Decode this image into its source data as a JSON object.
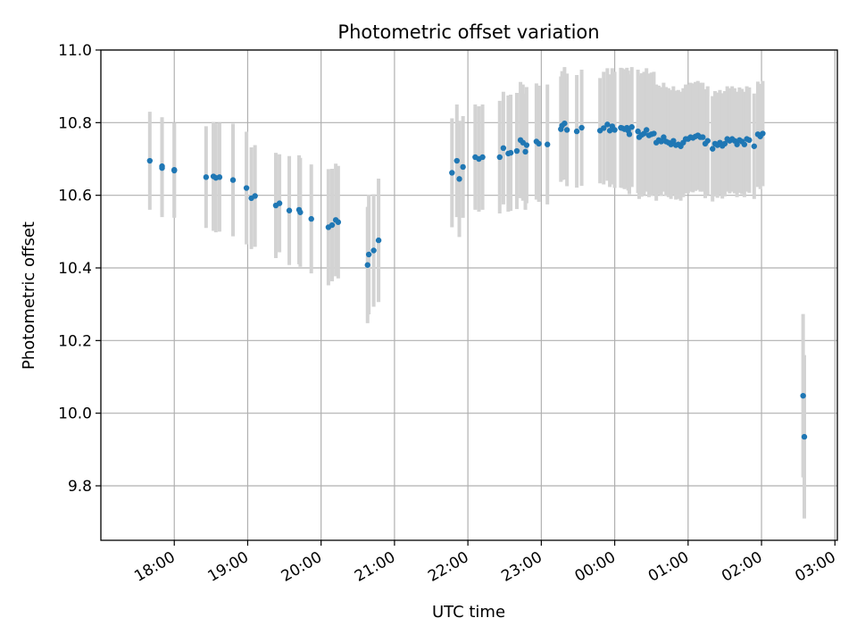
{
  "chart_data": {
    "type": "scatter",
    "title": "Photometric offset variation",
    "xlabel": "UTC time",
    "ylabel": "Photometric offset",
    "x_ticks": [
      "18:00",
      "19:00",
      "20:00",
      "21:00",
      "22:00",
      "23:00",
      "00:00",
      "01:00",
      "02:00",
      "03:00"
    ],
    "y_ticks": [
      "9.8",
      "10.0",
      "10.2",
      "10.4",
      "10.6",
      "10.8",
      "11.0"
    ],
    "ylim": [
      9.65,
      11.0
    ],
    "xlim": [
      "17:00",
      "03:02"
    ],
    "grid": true,
    "colors": {
      "points": "#1f77b4",
      "errorbars": "#d3d3d3",
      "grid": "#b0b0b0"
    },
    "points": [
      {
        "t": "17:40",
        "y": 10.695,
        "e": 0.135
      },
      {
        "t": "17:50",
        "y": 10.68,
        "e": 0.135
      },
      {
        "t": "17:50",
        "y": 10.675,
        "e": 0.135
      },
      {
        "t": "18:00",
        "y": 10.67,
        "e": 0.13
      },
      {
        "t": "18:00",
        "y": 10.668,
        "e": 0.13
      },
      {
        "t": "18:26",
        "y": 10.65,
        "e": 0.14
      },
      {
        "t": "18:32",
        "y": 10.652,
        "e": 0.15
      },
      {
        "t": "18:34",
        "y": 10.648,
        "e": 0.15
      },
      {
        "t": "18:37",
        "y": 10.65,
        "e": 0.15
      },
      {
        "t": "18:48",
        "y": 10.642,
        "e": 0.155
      },
      {
        "t": "18:59",
        "y": 10.62,
        "e": 0.155
      },
      {
        "t": "19:03",
        "y": 10.592,
        "e": 0.14
      },
      {
        "t": "19:06",
        "y": 10.598,
        "e": 0.14
      },
      {
        "t": "19:23",
        "y": 10.572,
        "e": 0.145
      },
      {
        "t": "19:26",
        "y": 10.578,
        "e": 0.135
      },
      {
        "t": "19:34",
        "y": 10.558,
        "e": 0.15
      },
      {
        "t": "19:42",
        "y": 10.56,
        "e": 0.15
      },
      {
        "t": "19:43",
        "y": 10.553,
        "e": 0.15
      },
      {
        "t": "19:52",
        "y": 10.535,
        "e": 0.15
      },
      {
        "t": "20:06",
        "y": 10.512,
        "e": 0.16
      },
      {
        "t": "20:09",
        "y": 10.518,
        "e": 0.155
      },
      {
        "t": "20:12",
        "y": 10.532,
        "e": 0.155
      },
      {
        "t": "20:14",
        "y": 10.526,
        "e": 0.155
      },
      {
        "t": "20:38",
        "y": 10.408,
        "e": 0.16
      },
      {
        "t": "20:39",
        "y": 10.437,
        "e": 0.165
      },
      {
        "t": "20:43",
        "y": 10.448,
        "e": 0.155
      },
      {
        "t": "20:47",
        "y": 10.476,
        "e": 0.17
      },
      {
        "t": "21:47",
        "y": 10.662,
        "e": 0.15
      },
      {
        "t": "21:51",
        "y": 10.695,
        "e": 0.155
      },
      {
        "t": "21:53",
        "y": 10.645,
        "e": 0.16
      },
      {
        "t": "21:56",
        "y": 10.678,
        "e": 0.14
      },
      {
        "t": "22:06",
        "y": 10.705,
        "e": 0.145
      },
      {
        "t": "22:09",
        "y": 10.7,
        "e": 0.145
      },
      {
        "t": "22:12",
        "y": 10.705,
        "e": 0.145
      },
      {
        "t": "22:26",
        "y": 10.705,
        "e": 0.155
      },
      {
        "t": "22:29",
        "y": 10.73,
        "e": 0.155
      },
      {
        "t": "22:33",
        "y": 10.715,
        "e": 0.16
      },
      {
        "t": "22:35",
        "y": 10.717,
        "e": 0.16
      },
      {
        "t": "22:40",
        "y": 10.722,
        "e": 0.16
      },
      {
        "t": "22:43",
        "y": 10.752,
        "e": 0.16
      },
      {
        "t": "22:45",
        "y": 10.745,
        "e": 0.16
      },
      {
        "t": "22:47",
        "y": 10.72,
        "e": 0.16
      },
      {
        "t": "22:48",
        "y": 10.738,
        "e": 0.16
      },
      {
        "t": "22:56",
        "y": 10.748,
        "e": 0.16
      },
      {
        "t": "22:58",
        "y": 10.742,
        "e": 0.16
      },
      {
        "t": "23:05",
        "y": 10.74,
        "e": 0.165
      },
      {
        "t": "23:16",
        "y": 10.782,
        "e": 0.145
      },
      {
        "t": "23:17",
        "y": 10.792,
        "e": 0.15
      },
      {
        "t": "23:19",
        "y": 10.798,
        "e": 0.155
      },
      {
        "t": "23:21",
        "y": 10.78,
        "e": 0.155
      },
      {
        "t": "23:29",
        "y": 10.776,
        "e": 0.155
      },
      {
        "t": "23:33",
        "y": 10.786,
        "e": 0.16
      },
      {
        "t": "23:48",
        "y": 10.778,
        "e": 0.145
      },
      {
        "t": "23:51",
        "y": 10.785,
        "e": 0.155
      },
      {
        "t": "23:54",
        "y": 10.795,
        "e": 0.155
      },
      {
        "t": "23:56",
        "y": 10.778,
        "e": 0.155
      },
      {
        "t": "23:58",
        "y": 10.79,
        "e": 0.16
      },
      {
        "t": "00:00",
        "y": 10.78,
        "e": 0.16
      },
      {
        "t": "00:05",
        "y": 10.786,
        "e": 0.165
      },
      {
        "t": "00:06",
        "y": 10.785,
        "e": 0.165
      },
      {
        "t": "00:08",
        "y": 10.782,
        "e": 0.165
      },
      {
        "t": "00:10",
        "y": 10.786,
        "e": 0.165
      },
      {
        "t": "00:11",
        "y": 10.778,
        "e": 0.165
      },
      {
        "t": "00:12",
        "y": 10.768,
        "e": 0.165
      },
      {
        "t": "00:14",
        "y": 10.788,
        "e": 0.165
      },
      {
        "t": "00:19",
        "y": 10.776,
        "e": 0.17
      },
      {
        "t": "00:20",
        "y": 10.76,
        "e": 0.17
      },
      {
        "t": "00:22",
        "y": 10.766,
        "e": 0.17
      },
      {
        "t": "00:24",
        "y": 10.77,
        "e": 0.17
      },
      {
        "t": "00:26",
        "y": 10.78,
        "e": 0.17
      },
      {
        "t": "00:28",
        "y": 10.765,
        "e": 0.17
      },
      {
        "t": "00:30",
        "y": 10.768,
        "e": 0.17
      },
      {
        "t": "00:32",
        "y": 10.77,
        "e": 0.17
      },
      {
        "t": "00:34",
        "y": 10.745,
        "e": 0.16
      },
      {
        "t": "00:36",
        "y": 10.752,
        "e": 0.15
      },
      {
        "t": "00:38",
        "y": 10.748,
        "e": 0.15
      },
      {
        "t": "00:40",
        "y": 10.76,
        "e": 0.15
      },
      {
        "t": "00:42",
        "y": 10.748,
        "e": 0.15
      },
      {
        "t": "00:44",
        "y": 10.745,
        "e": 0.15
      },
      {
        "t": "00:46",
        "y": 10.74,
        "e": 0.15
      },
      {
        "t": "00:48",
        "y": 10.75,
        "e": 0.15
      },
      {
        "t": "00:50",
        "y": 10.738,
        "e": 0.15
      },
      {
        "t": "00:52",
        "y": 10.74,
        "e": 0.15
      },
      {
        "t": "00:54",
        "y": 10.735,
        "e": 0.15
      },
      {
        "t": "00:56",
        "y": 10.745,
        "e": 0.15
      },
      {
        "t": "00:58",
        "y": 10.755,
        "e": 0.15
      },
      {
        "t": "01:00",
        "y": 10.755,
        "e": 0.15
      },
      {
        "t": "01:02",
        "y": 10.76,
        "e": 0.15
      },
      {
        "t": "01:04",
        "y": 10.758,
        "e": 0.15
      },
      {
        "t": "01:06",
        "y": 10.762,
        "e": 0.15
      },
      {
        "t": "01:08",
        "y": 10.765,
        "e": 0.15
      },
      {
        "t": "01:10",
        "y": 10.76,
        "e": 0.15
      },
      {
        "t": "01:12",
        "y": 10.76,
        "e": 0.15
      },
      {
        "t": "01:14",
        "y": 10.742,
        "e": 0.15
      },
      {
        "t": "01:16",
        "y": 10.75,
        "e": 0.15
      },
      {
        "t": "01:20",
        "y": 10.728,
        "e": 0.145
      },
      {
        "t": "01:22",
        "y": 10.742,
        "e": 0.145
      },
      {
        "t": "01:24",
        "y": 10.738,
        "e": 0.145
      },
      {
        "t": "01:26",
        "y": 10.745,
        "e": 0.145
      },
      {
        "t": "01:28",
        "y": 10.736,
        "e": 0.145
      },
      {
        "t": "01:30",
        "y": 10.742,
        "e": 0.145
      },
      {
        "t": "01:32",
        "y": 10.755,
        "e": 0.145
      },
      {
        "t": "01:34",
        "y": 10.75,
        "e": 0.145
      },
      {
        "t": "01:36",
        "y": 10.755,
        "e": 0.145
      },
      {
        "t": "01:38",
        "y": 10.75,
        "e": 0.145
      },
      {
        "t": "01:40",
        "y": 10.74,
        "e": 0.145
      },
      {
        "t": "01:42",
        "y": 10.752,
        "e": 0.145
      },
      {
        "t": "01:44",
        "y": 10.748,
        "e": 0.145
      },
      {
        "t": "01:46",
        "y": 10.74,
        "e": 0.145
      },
      {
        "t": "01:48",
        "y": 10.755,
        "e": 0.145
      },
      {
        "t": "01:50",
        "y": 10.752,
        "e": 0.145
      },
      {
        "t": "01:54",
        "y": 10.735,
        "e": 0.145
      },
      {
        "t": "01:57",
        "y": 10.768,
        "e": 0.145
      },
      {
        "t": "01:59",
        "y": 10.762,
        "e": 0.145
      },
      {
        "t": "02:01",
        "y": 10.77,
        "e": 0.145
      },
      {
        "t": "02:34",
        "y": 10.048,
        "e": 0.225
      },
      {
        "t": "02:35",
        "y": 9.935,
        "e": 0.225
      }
    ]
  }
}
